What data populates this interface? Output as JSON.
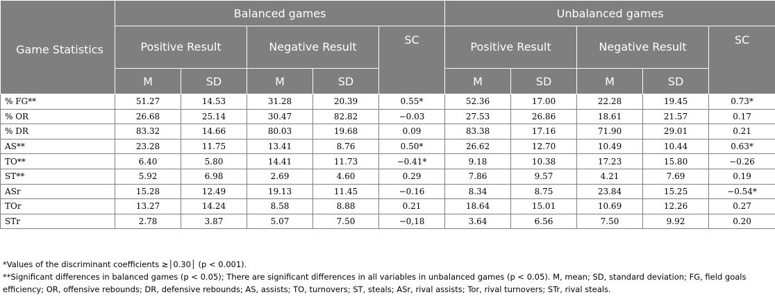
{
  "table": {
    "corner": "Game Statistics",
    "groups": [
      "Balanced games",
      "Unbalanced games"
    ],
    "subgroups": [
      "Positive Result",
      "Negative Result",
      "SC",
      "Positive Result",
      "Negative Result",
      "SC"
    ],
    "leaf": [
      "M",
      "SD",
      "M",
      "SD",
      "M",
      "SD",
      "M",
      "SD"
    ],
    "rows": [
      {
        "label": "% FG**",
        "cells": [
          "51.27",
          "14.53",
          "31.28",
          "20.39",
          "0.55*",
          "52.36",
          "17.00",
          "22.28",
          "19.45",
          "0.73*"
        ]
      },
      {
        "label": "% OR",
        "cells": [
          "26.68",
          "25.14",
          "30.47",
          "82.82",
          "−0.03",
          "27.53",
          "26.86",
          "18.61",
          "21.57",
          "0.17"
        ]
      },
      {
        "label": "% DR",
        "cells": [
          "83.32",
          "14.66",
          "80.03",
          "19.68",
          "0.09",
          "83.38",
          "17.16",
          "71.90",
          "29.01",
          "0.21"
        ]
      },
      {
        "label": "AS**",
        "cells": [
          "23.28",
          "11.75",
          "13.41",
          "8.76",
          "0.50*",
          "26.62",
          "12.70",
          "10.49",
          "10.44",
          "0.63*"
        ]
      },
      {
        "label": "TO**",
        "cells": [
          "6.40",
          "5.80",
          "14.41",
          "11.73",
          "−0.41*",
          "9.18",
          "10.38",
          "17.23",
          "15.80",
          "−0.26"
        ]
      },
      {
        "label": "ST**",
        "cells": [
          "5.92",
          "6.98",
          "2.69",
          "4.60",
          "0.29",
          "7.86",
          "9.57",
          "4.21",
          "7.69",
          "0.19"
        ]
      },
      {
        "label": "ASr",
        "cells": [
          "15.28",
          "12.49",
          "19.13",
          "11.45",
          "−0.16",
          "8.34",
          "8.75",
          "23.84",
          "15.25",
          "−0.54*"
        ]
      },
      {
        "label": "TOr",
        "cells": [
          "13.27",
          "14.24",
          "8.58",
          "8.88",
          "0.21",
          "18.64",
          "15.01",
          "10.69",
          "12.26",
          "0.27"
        ]
      },
      {
        "label": "STr",
        "cells": [
          "2.78",
          "3.87",
          "5.07",
          "7.50",
          "−0,18",
          "3.64",
          "6.56",
          "7.50",
          "9.92",
          "0.20"
        ]
      }
    ]
  },
  "notes": {
    "n1": "*Values of the discriminant coefficients ≥│0.30│ (p < 0.001).",
    "n2": "**Significant differences in balanced games (p < 0.05); There are significant differences in all variables in unbalanced games (p < 0.05). M, mean; SD, standard deviation; FG, field goals efficiency; OR, offensive rebounds; DR, defensive rebounds; AS, assists; TO, turnovers; ST, steals; ASr, rival assists; Tor, rival turnovers; STr, rival steals."
  }
}
